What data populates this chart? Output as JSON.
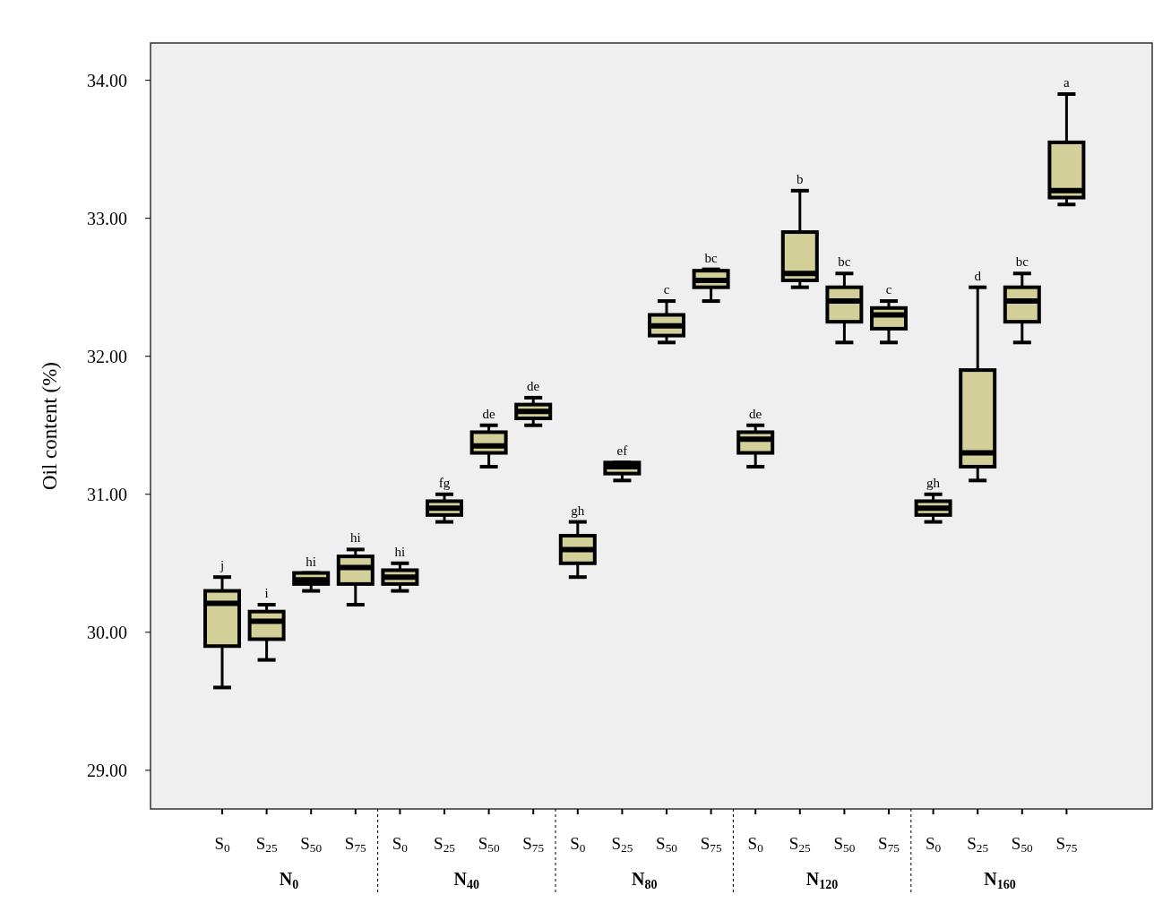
{
  "chart_data": {
    "type": "box",
    "ylabel": "Oil content (%)",
    "categories": [
      "S$_{0}$",
      "S$_{25}$",
      "S$_{50}$",
      "S$_{75}$",
      "S$_{0}$",
      "S$_{25}$",
      "S$_{50}$",
      "S$_{75}$",
      "S$_{0}$",
      "S$_{25}$",
      "S$_{50}$",
      "S$_{75}$",
      "S$_{0}$",
      "S$_{25}$",
      "S$_{50}$",
      "S$_{75}$",
      "S$_{0}$",
      "S$_{25}$",
      "S$_{50}$",
      "S$_{75}$"
    ],
    "ylim": [
      28.72,
      34.27
    ],
    "yticks": [
      {
        "value": 29,
        "label": "29.00"
      },
      {
        "value": 30,
        "label": "30.00"
      },
      {
        "value": 31,
        "label": "31.00"
      },
      {
        "value": 32,
        "label": "32.00"
      },
      {
        "value": 33,
        "label": "33.00"
      },
      {
        "value": 34,
        "label": "34.00"
      }
    ],
    "grid": false,
    "series": [
      {
        "color": "#d3cf98",
        "boxes": [
          {
            "low": 29.6,
            "q1": 29.9,
            "median": 30.21,
            "q3": 30.3,
            "high": 30.4
          },
          {
            "low": 29.8,
            "q1": 29.95,
            "median": 30.08,
            "q3": 30.15,
            "high": 30.2
          },
          {
            "low": 30.3,
            "q1": 30.35,
            "median": 30.38,
            "q3": 30.43,
            "high": 30.43
          },
          {
            "low": 30.2,
            "q1": 30.35,
            "median": 30.47,
            "q3": 30.55,
            "high": 30.6
          },
          {
            "low": 30.3,
            "q1": 30.35,
            "median": 30.4,
            "q3": 30.45,
            "high": 30.5
          },
          {
            "low": 30.8,
            "q1": 30.85,
            "median": 30.9,
            "q3": 30.95,
            "high": 31.0
          },
          {
            "low": 31.2,
            "q1": 31.3,
            "median": 31.35,
            "q3": 31.45,
            "high": 31.5
          },
          {
            "low": 31.5,
            "q1": 31.55,
            "median": 31.6,
            "q3": 31.65,
            "high": 31.7
          },
          {
            "low": 30.4,
            "q1": 30.5,
            "median": 30.6,
            "q3": 30.7,
            "high": 30.8
          },
          {
            "low": 31.1,
            "q1": 31.15,
            "median": 31.2,
            "q3": 31.23,
            "high": 31.23
          },
          {
            "low": 32.1,
            "q1": 32.15,
            "median": 32.22,
            "q3": 32.3,
            "high": 32.4
          },
          {
            "low": 32.4,
            "q1": 32.5,
            "median": 32.55,
            "q3": 32.62,
            "high": 32.63
          },
          {
            "low": 31.2,
            "q1": 31.3,
            "median": 31.4,
            "q3": 31.45,
            "high": 31.5
          },
          {
            "low": 32.5,
            "q1": 32.55,
            "median": 32.6,
            "q3": 32.9,
            "high": 33.2
          },
          {
            "low": 32.1,
            "q1": 32.25,
            "median": 32.4,
            "q3": 32.5,
            "high": 32.6
          },
          {
            "low": 32.1,
            "q1": 32.2,
            "median": 32.3,
            "q3": 32.35,
            "high": 32.4
          },
          {
            "low": 30.8,
            "q1": 30.85,
            "median": 30.9,
            "q3": 30.95,
            "high": 31.0
          },
          {
            "low": 31.1,
            "q1": 31.2,
            "median": 31.3,
            "q3": 31.9,
            "high": 32.5
          },
          {
            "low": 32.1,
            "q1": 32.25,
            "median": 32.4,
            "q3": 32.5,
            "high": 32.6
          },
          {
            "low": 33.1,
            "q1": 33.15,
            "median": 33.2,
            "q3": 33.55,
            "high": 33.9
          }
        ]
      }
    ],
    "annotations": [
      "N$_{0}$",
      "N$_{40}$",
      "N$_{80}$",
      "N$_{120}$",
      "N$_{160}$",
      {
        "text": "j",
        "y": 30.4
      },
      {
        "text": "i",
        "y": 30.2
      },
      {
        "text": "hi",
        "y": 30.43
      },
      {
        "text": "hi",
        "y": 30.6
      },
      {
        "text": "hi",
        "y": 30.5
      },
      {
        "text": "fg",
        "y": 31.0
      },
      {
        "text": "de",
        "y": 31.5
      },
      {
        "text": "de",
        "y": 31.7
      },
      {
        "text": "gh",
        "y": 30.8
      },
      {
        "text": "ef",
        "y": 31.23
      },
      {
        "text": "c",
        "y": 32.4
      },
      {
        "text": "bc",
        "y": 32.63
      },
      {
        "text": "de",
        "y": 31.5
      },
      {
        "text": "b",
        "y": 33.2
      },
      {
        "text": "bc",
        "y": 32.6
      },
      {
        "text": "c",
        "y": 32.4
      },
      {
        "text": "gh",
        "y": 31.0
      },
      {
        "text": "d",
        "y": 32.5
      },
      {
        "text": "bc",
        "y": 32.6
      },
      {
        "text": "a",
        "y": 33.9
      }
    ]
  }
}
